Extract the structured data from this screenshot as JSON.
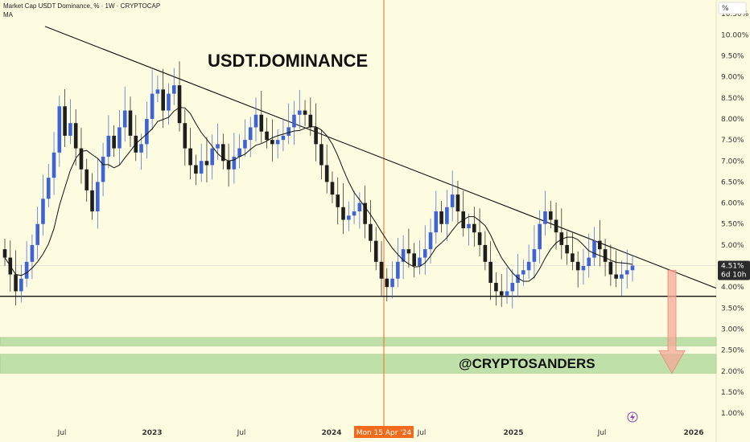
{
  "header": {
    "line1": "Market Cap USDT Dominance, % · 1W · CRYPTOCAP",
    "line2": "MA"
  },
  "pct_badge": "%",
  "watermark_icon": "lightning-icon",
  "colors": {
    "background": "#fdfbe0",
    "bull": "#3d63d6",
    "bear": "#1e1e1e",
    "cursor": "#f26a1b",
    "zone": "#bfe0a8",
    "arrow": "#f3a99a"
  },
  "chart_data": {
    "type": "candlestick",
    "title": "USDT.DOMINANCE",
    "watermark": "@CRYPTOSANDERS",
    "ylim": [
      0.6,
      10.6
    ],
    "y_ticks": [
      "10.50%",
      "10.00%",
      "9.50%",
      "9.00%",
      "8.50%",
      "8.00%",
      "7.50%",
      "7.00%",
      "6.50%",
      "6.00%",
      "5.50%",
      "5.00%",
      "4.51%",
      "4.00%",
      "3.50%",
      "3.00%",
      "2.50%",
      "2.00%",
      "1.50%",
      "1.00%"
    ],
    "x_ticks": [
      "Jul",
      "2023",
      "Jul",
      "2024",
      "Mon 15 Apr '24",
      "Jul",
      "2025",
      "Jul",
      "2026"
    ],
    "current": {
      "value": "4.51%",
      "countdown": "6d 10h"
    },
    "cursor_date": "Mon 15 Apr '24",
    "ma_label": "MA",
    "candles_close": [
      4.7,
      4.3,
      3.9,
      4.2,
      4.6,
      5.0,
      5.5,
      6.1,
      6.6,
      7.2,
      8.3,
      7.6,
      7.9,
      7.3,
      6.8,
      6.3,
      5.8,
      6.5,
      7.1,
      7.6,
      7.3,
      7.8,
      8.2,
      7.6,
      7.2,
      7.4,
      8.0,
      8.6,
      8.7,
      8.2,
      8.6,
      8.8,
      7.9,
      7.3,
      6.9,
      6.7,
      7.0,
      6.9,
      7.3,
      7.4,
      7.0,
      6.8,
      7.1,
      7.3,
      7.5,
      7.8,
      8.1,
      7.7,
      7.5,
      7.4,
      7.5,
      7.6,
      7.8,
      8.1,
      8.2,
      8.1,
      7.8,
      7.4,
      6.9,
      6.5,
      6.2,
      5.9,
      5.6,
      5.7,
      5.8,
      6.0,
      5.5,
      5.1,
      4.6,
      4.2,
      4.0,
      4.2,
      4.6,
      4.9,
      4.8,
      4.5,
      4.7,
      4.9,
      5.3,
      5.8,
      5.5,
      5.9,
      6.2,
      5.8,
      5.4,
      5.5,
      5.3,
      5.0,
      4.6,
      4.1,
      3.9,
      3.8,
      3.9,
      4.1,
      4.3,
      4.4,
      4.6,
      4.9,
      5.5,
      5.8,
      5.6,
      5.3,
      5.0,
      4.8,
      4.6,
      4.4,
      4.5,
      4.7,
      5.1,
      4.9,
      4.6,
      4.3,
      4.2,
      4.3,
      4.4,
      4.51
    ],
    "support_level": 3.78,
    "demand_zones": [
      [
        2.6,
        2.8
      ],
      [
        1.95,
        2.4
      ]
    ],
    "trendline": [
      [
        0,
        10.2
      ],
      [
        115,
        4.75
      ]
    ],
    "arrow": {
      "from": 4.4,
      "to": 1.95
    }
  }
}
